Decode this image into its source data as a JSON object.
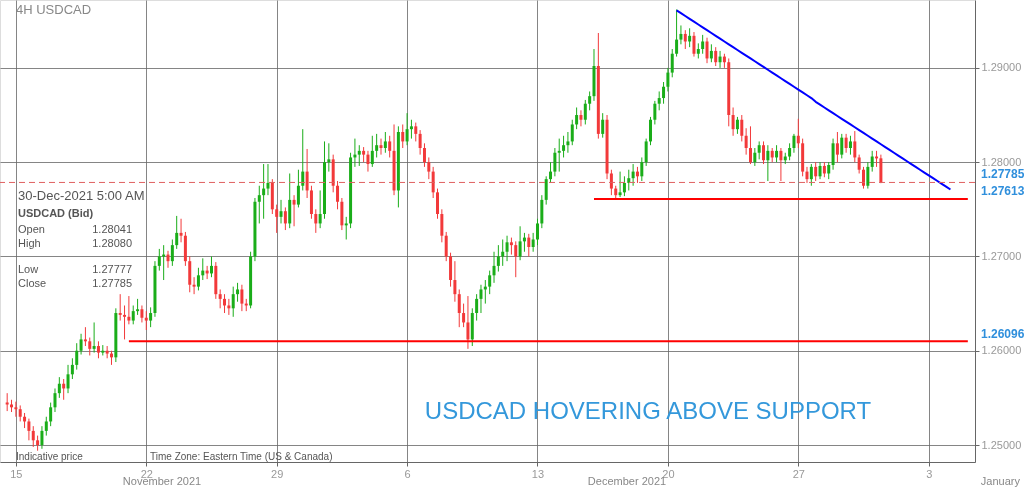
{
  "chart_data": {
    "type": "candlestick",
    "title": "4H  USDCAD",
    "categories": [
      null,
      null,
      "15",
      null,
      null,
      null,
      null,
      null,
      null,
      null,
      null,
      null,
      null,
      null,
      null,
      null,
      null,
      null,
      null,
      null,
      null,
      null,
      null,
      null,
      null,
      null,
      null,
      null,
      null,
      null,
      null,
      null,
      "22",
      null,
      null,
      null,
      null,
      null,
      null,
      null,
      null,
      null,
      null,
      null,
      null,
      null,
      null,
      null,
      null,
      null,
      null,
      null,
      null,
      null,
      null,
      null,
      null,
      null,
      null,
      null,
      null,
      null,
      "29",
      null,
      null,
      null,
      null,
      null,
      null,
      null,
      null,
      null,
      null,
      null,
      null,
      null,
      null,
      null,
      null,
      null,
      null,
      null,
      null,
      null,
      null,
      null,
      null,
      null,
      null,
      null,
      null,
      null,
      "6",
      null,
      null,
      null,
      null,
      null,
      null,
      null,
      null,
      null,
      null,
      null,
      null,
      null,
      null,
      null,
      null,
      null,
      null,
      null,
      null,
      null,
      null,
      null,
      null,
      null,
      null,
      null,
      null,
      null,
      "13",
      null,
      null,
      null,
      null,
      null,
      null,
      null,
      null,
      null,
      null,
      null,
      null,
      null,
      null,
      null,
      null,
      null,
      null,
      null,
      null,
      null,
      null,
      null,
      null,
      null,
      null,
      null,
      null,
      null,
      "20",
      null,
      null,
      null,
      null,
      null,
      null,
      null,
      null,
      null,
      null,
      null,
      null,
      null,
      null,
      null,
      null,
      null,
      null,
      null,
      null,
      null,
      null,
      null,
      null,
      null,
      null,
      null,
      null,
      null,
      "27",
      null,
      null,
      null,
      null,
      null,
      null,
      null,
      null,
      null,
      null,
      null,
      null,
      null,
      null,
      null,
      null,
      null,
      null,
      null,
      null,
      null,
      null,
      null,
      null,
      null,
      null,
      null,
      null,
      null,
      "3",
      null,
      null,
      null,
      null,
      null,
      null,
      null,
      null,
      null
    ],
    "ohlc": [
      [
        1.2545,
        1.2555,
        1.2536,
        1.2543
      ],
      [
        1.2543,
        1.2548,
        1.2535,
        1.254
      ],
      [
        1.254,
        1.2546,
        1.253,
        1.2538
      ],
      [
        1.2538,
        1.2542,
        1.2525,
        1.253
      ],
      [
        1.253,
        1.2534,
        1.2518,
        1.2525
      ],
      [
        1.2525,
        1.2528,
        1.2505,
        1.2515
      ],
      [
        1.2515,
        1.252,
        1.2498,
        1.2505
      ],
      [
        1.2505,
        1.251,
        1.2494,
        1.25
      ],
      [
        1.25,
        1.252,
        1.2496,
        1.2515
      ],
      [
        1.2515,
        1.253,
        1.251,
        1.2525
      ],
      [
        1.2525,
        1.2545,
        1.252,
        1.254
      ],
      [
        1.254,
        1.256,
        1.2535,
        1.2555
      ],
      [
        1.2555,
        1.2572,
        1.255,
        1.2565
      ],
      [
        1.2565,
        1.257,
        1.2548,
        1.256
      ],
      [
        1.256,
        1.2585,
        1.2555,
        1.2575
      ],
      [
        1.2575,
        1.2592,
        1.257,
        1.2585
      ],
      [
        1.2585,
        1.2608,
        1.258,
        1.26
      ],
      [
        1.26,
        1.2618,
        1.2596,
        1.2612
      ],
      [
        1.2612,
        1.2625,
        1.2605,
        1.261
      ],
      [
        1.261,
        1.2614,
        1.2595,
        1.2602
      ],
      [
        1.2602,
        1.263,
        1.2598,
        1.2605
      ],
      [
        1.2605,
        1.261,
        1.2592,
        1.2598
      ],
      [
        1.2598,
        1.2606,
        1.2595,
        1.26
      ],
      [
        1.26,
        1.2605,
        1.2592,
        1.2597
      ],
      [
        1.2597,
        1.26,
        1.2585,
        1.2593
      ],
      [
        1.2593,
        1.2645,
        1.2588,
        1.264
      ],
      [
        1.264,
        1.266,
        1.2632,
        1.2638
      ],
      [
        1.2638,
        1.2648,
        1.2612,
        1.2636
      ],
      [
        1.2636,
        1.2658,
        1.2628,
        1.2632
      ],
      [
        1.2632,
        1.2648,
        1.2628,
        1.2642
      ],
      [
        1.2642,
        1.2655,
        1.2638,
        1.2644
      ],
      [
        1.2644,
        1.2648,
        1.263,
        1.2635
      ],
      [
        1.2635,
        1.2642,
        1.2622,
        1.2632
      ],
      [
        1.2632,
        1.2646,
        1.2625,
        1.264
      ],
      [
        1.264,
        1.2695,
        1.2636,
        1.269
      ],
      [
        1.269,
        1.2708,
        1.2685,
        1.27
      ],
      [
        1.27,
        1.2712,
        1.2675,
        1.2702
      ],
      [
        1.2702,
        1.2706,
        1.2688,
        1.2695
      ],
      [
        1.2695,
        1.2718,
        1.269,
        1.2712
      ],
      [
        1.2712,
        1.2743,
        1.2708,
        1.2725
      ],
      [
        1.2725,
        1.274,
        1.2715,
        1.2722
      ],
      [
        1.2722,
        1.2726,
        1.269,
        1.2695
      ],
      [
        1.2695,
        1.27,
        1.2662,
        1.267
      ],
      [
        1.267,
        1.2678,
        1.266,
        1.2668
      ],
      [
        1.2668,
        1.2688,
        1.2664,
        1.268
      ],
      [
        1.268,
        1.2698,
        1.2675,
        1.2685
      ],
      [
        1.2685,
        1.269,
        1.2676,
        1.2682
      ],
      [
        1.2682,
        1.27,
        1.2678,
        1.269
      ],
      [
        1.269,
        1.2694,
        1.2655,
        1.266
      ],
      [
        1.266,
        1.2665,
        1.2645,
        1.2655
      ],
      [
        1.2655,
        1.266,
        1.264,
        1.2648
      ],
      [
        1.2648,
        1.2655,
        1.2638,
        1.2645
      ],
      [
        1.2645,
        1.2668,
        1.2636,
        1.266
      ],
      [
        1.266,
        1.2672,
        1.2652,
        1.2665
      ],
      [
        1.2665,
        1.267,
        1.2642,
        1.265
      ],
      [
        1.265,
        1.2655,
        1.2642,
        1.2648
      ],
      [
        1.2648,
        1.2705,
        1.2645,
        1.27
      ],
      [
        1.27,
        1.2762,
        1.2695,
        1.2758
      ],
      [
        1.2758,
        1.2775,
        1.2735,
        1.2765
      ],
      [
        1.2765,
        1.2798,
        1.274,
        1.2772
      ],
      [
        1.2772,
        1.2798,
        1.2765,
        1.2778
      ],
      [
        1.2778,
        1.2782,
        1.2745,
        1.275
      ],
      [
        1.275,
        1.2755,
        1.2725,
        1.2742
      ],
      [
        1.2742,
        1.276,
        1.2735,
        1.2748
      ],
      [
        1.2748,
        1.2752,
        1.2728,
        1.2735
      ],
      [
        1.2735,
        1.2788,
        1.273,
        1.276
      ],
      [
        1.276,
        1.2765,
        1.2732,
        1.2755
      ],
      [
        1.2755,
        1.2792,
        1.2752,
        1.2775
      ],
      [
        1.2775,
        1.2835,
        1.277,
        1.279
      ],
      [
        1.279,
        1.2814,
        1.2762,
        1.277
      ],
      [
        1.277,
        1.2775,
        1.274,
        1.2745
      ],
      [
        1.2745,
        1.275,
        1.2725,
        1.2735
      ],
      [
        1.2735,
        1.277,
        1.273,
        1.2745
      ],
      [
        1.2745,
        1.2822,
        1.274,
        1.28
      ],
      [
        1.28,
        1.282,
        1.279,
        1.2803
      ],
      [
        1.2803,
        1.2808,
        1.2768,
        1.2775
      ],
      [
        1.2775,
        1.278,
        1.275,
        1.2758
      ],
      [
        1.2758,
        1.2762,
        1.2728,
        1.2733
      ],
      [
        1.2733,
        1.2742,
        1.2718,
        1.2735
      ],
      [
        1.2735,
        1.281,
        1.273,
        1.2805
      ],
      [
        1.2805,
        1.2825,
        1.2795,
        1.2808
      ],
      [
        1.2808,
        1.2818,
        1.2796,
        1.2812
      ],
      [
        1.2812,
        1.2816,
        1.28,
        1.2808
      ],
      [
        1.2808,
        1.2812,
        1.279,
        1.2798
      ],
      [
        1.2798,
        1.2828,
        1.2795,
        1.2812
      ],
      [
        1.2812,
        1.283,
        1.2805,
        1.2818
      ],
      [
        1.2818,
        1.2825,
        1.2808,
        1.2815
      ],
      [
        1.2815,
        1.2832,
        1.281,
        1.2822
      ],
      [
        1.2822,
        1.2828,
        1.2805,
        1.2812
      ],
      [
        1.2812,
        1.284,
        1.2765,
        1.277
      ],
      [
        1.277,
        1.2838,
        1.2752,
        1.2832
      ],
      [
        1.2832,
        1.284,
        1.2815,
        1.2822
      ],
      [
        1.2822,
        1.2852,
        1.2818,
        1.2835
      ],
      [
        1.2835,
        1.2845,
        1.2825,
        1.2838
      ],
      [
        1.2838,
        1.2842,
        1.2822,
        1.283
      ],
      [
        1.283,
        1.2834,
        1.2808,
        1.2815
      ],
      [
        1.2815,
        1.282,
        1.2795,
        1.28
      ],
      [
        1.28,
        1.2805,
        1.2782,
        1.279
      ],
      [
        1.279,
        1.2795,
        1.2762,
        1.2768
      ],
      [
        1.2768,
        1.2772,
        1.274,
        1.2745
      ],
      [
        1.2745,
        1.275,
        1.2715,
        1.2722
      ],
      [
        1.2722,
        1.2726,
        1.2695,
        1.27
      ],
      [
        1.27,
        1.2704,
        1.2668,
        1.2675
      ],
      [
        1.2675,
        1.2695,
        1.2652,
        1.266
      ],
      [
        1.266,
        1.2665,
        1.2625,
        1.264
      ],
      [
        1.264,
        1.265,
        1.2625,
        1.263
      ],
      [
        1.263,
        1.2658,
        1.2602,
        1.2612
      ],
      [
        1.2612,
        1.2645,
        1.2605,
        1.264
      ],
      [
        1.264,
        1.266,
        1.2632,
        1.2655
      ],
      [
        1.2655,
        1.267,
        1.264,
        1.2665
      ],
      [
        1.2665,
        1.2675,
        1.265,
        1.2668
      ],
      [
        1.2668,
        1.2685,
        1.266,
        1.268
      ],
      [
        1.268,
        1.2705,
        1.2672,
        1.269
      ],
      [
        1.269,
        1.2712,
        1.2684,
        1.27
      ],
      [
        1.27,
        1.2718,
        1.269,
        1.2705
      ],
      [
        1.2705,
        1.2722,
        1.2695,
        1.2715
      ],
      [
        1.2715,
        1.272,
        1.2702,
        1.2712
      ],
      [
        1.2712,
        1.2716,
        1.2678,
        1.27
      ],
      [
        1.27,
        1.2732,
        1.2696,
        1.2716
      ],
      [
        1.2716,
        1.2725,
        1.2705,
        1.272
      ],
      [
        1.272,
        1.2724,
        1.27,
        1.271
      ],
      [
        1.271,
        1.2725,
        1.2705,
        1.2718
      ],
      [
        1.2718,
        1.274,
        1.2712,
        1.2735
      ],
      [
        1.2735,
        1.2765,
        1.273,
        1.276
      ],
      [
        1.276,
        1.2785,
        1.2755,
        1.2782
      ],
      [
        1.2782,
        1.28,
        1.2778,
        1.279
      ],
      [
        1.279,
        1.2815,
        1.2785,
        1.281
      ],
      [
        1.281,
        1.2825,
        1.279,
        1.2812
      ],
      [
        1.2812,
        1.2828,
        1.2805,
        1.2818
      ],
      [
        1.2818,
        1.2832,
        1.281,
        1.2822
      ],
      [
        1.2822,
        1.2845,
        1.2818,
        1.284
      ],
      [
        1.284,
        1.2858,
        1.2835,
        1.285
      ],
      [
        1.285,
        1.2855,
        1.2838,
        1.2845
      ],
      [
        1.2845,
        1.2866,
        1.284,
        1.2862
      ],
      [
        1.2862,
        1.2875,
        1.2855,
        1.287
      ],
      [
        1.287,
        1.292,
        1.2865,
        1.2902
      ],
      [
        1.2902,
        1.2937,
        1.2825,
        1.283
      ],
      [
        1.283,
        1.2852,
        1.2826,
        1.2845
      ],
      [
        1.2845,
        1.285,
        1.2782,
        1.2788
      ],
      [
        1.2788,
        1.2792,
        1.2765,
        1.2772
      ],
      [
        1.2772,
        1.2775,
        1.2762,
        1.2765
      ],
      [
        1.2765,
        1.279,
        1.2763,
        1.2768
      ],
      [
        1.2768,
        1.2785,
        1.2764,
        1.2778
      ],
      [
        1.2778,
        1.2792,
        1.277,
        1.2783
      ],
      [
        1.2783,
        1.2798,
        1.2775,
        1.279
      ],
      [
        1.279,
        1.2795,
        1.2778,
        1.2785
      ],
      [
        1.2785,
        1.2805,
        1.278,
        1.28
      ],
      [
        1.28,
        1.2825,
        1.2796,
        1.2822
      ],
      [
        1.2822,
        1.2848,
        1.2818,
        1.2845
      ],
      [
        1.2845,
        1.2865,
        1.284,
        1.2862
      ],
      [
        1.2862,
        1.2875,
        1.2855,
        1.2868
      ],
      [
        1.2868,
        1.2885,
        1.2862,
        1.288
      ],
      [
        1.288,
        1.29,
        1.2875,
        1.2895
      ],
      [
        1.2895,
        1.292,
        1.289,
        1.2915
      ],
      [
        1.2915,
        1.2962,
        1.2912,
        1.293
      ],
      [
        1.293,
        1.2945,
        1.2925,
        1.2936
      ],
      [
        1.2936,
        1.294,
        1.292,
        1.2928
      ],
      [
        1.2928,
        1.2942,
        1.2922,
        1.2934
      ],
      [
        1.2934,
        1.2938,
        1.2912,
        1.2915
      ],
      [
        1.2915,
        1.2926,
        1.291,
        1.292
      ],
      [
        1.292,
        1.2935,
        1.2915,
        1.2928
      ],
      [
        1.2928,
        1.2932,
        1.2905,
        1.291
      ],
      [
        1.291,
        1.2925,
        1.2906,
        1.2918
      ],
      [
        1.2918,
        1.2922,
        1.2902,
        1.2906
      ],
      [
        1.2906,
        1.2918,
        1.29,
        1.2912
      ],
      [
        1.2912,
        1.2915,
        1.29,
        1.2906
      ],
      [
        1.2906,
        1.291,
        1.2838,
        1.285
      ],
      [
        1.285,
        1.2858,
        1.2828,
        1.2835
      ],
      [
        1.2835,
        1.2848,
        1.283,
        1.2845
      ],
      [
        1.2845,
        1.285,
        1.2822,
        1.2828
      ],
      [
        1.2828,
        1.2836,
        1.2808,
        1.2815
      ],
      [
        1.2815,
        1.2838,
        1.2798,
        1.28
      ],
      [
        1.28,
        1.2815,
        1.2796,
        1.281
      ],
      [
        1.281,
        1.2822,
        1.2803,
        1.2818
      ],
      [
        1.2818,
        1.2822,
        1.2798,
        1.2802
      ],
      [
        1.2802,
        1.2818,
        1.278,
        1.2812
      ],
      [
        1.2812,
        1.2815,
        1.28,
        1.2805
      ],
      [
        1.2805,
        1.2818,
        1.28,
        1.2812
      ],
      [
        1.2812,
        1.2815,
        1.278,
        1.2802
      ],
      [
        1.2802,
        1.281,
        1.2798,
        1.2806
      ],
      [
        1.2806,
        1.282,
        1.2802,
        1.2815
      ],
      [
        1.2815,
        1.283,
        1.281,
        1.2828
      ],
      [
        1.2828,
        1.2846,
        1.2815,
        1.282
      ],
      [
        1.282,
        1.2825,
        1.2785,
        1.279
      ],
      [
        1.279,
        1.2795,
        1.2778,
        1.2782
      ],
      [
        1.2782,
        1.2798,
        1.2775,
        1.2795
      ],
      [
        1.2795,
        1.28,
        1.278,
        1.2785
      ],
      [
        1.2785,
        1.28,
        1.2782,
        1.2796
      ],
      [
        1.2796,
        1.28,
        1.2784,
        1.2788
      ],
      [
        1.2788,
        1.28,
        1.2782,
        1.2797
      ],
      [
        1.2797,
        1.2825,
        1.2792,
        1.282
      ],
      [
        1.282,
        1.2832,
        1.28,
        1.2808
      ],
      [
        1.2808,
        1.283,
        1.2804,
        1.2826
      ],
      [
        1.2826,
        1.283,
        1.281,
        1.2815
      ],
      [
        1.2815,
        1.2828,
        1.2808,
        1.2822
      ],
      [
        1.2822,
        1.2833,
        1.28,
        1.2805
      ],
      [
        1.2805,
        1.2808,
        1.2788,
        1.2792
      ],
      [
        1.2792,
        1.2795,
        1.2772,
        1.2775
      ],
      [
        1.2775,
        1.28,
        1.2772,
        1.2795
      ],
      [
        1.2795,
        1.2812,
        1.279,
        1.2806
      ],
      [
        1.2806,
        1.2812,
        1.2795,
        1.2804
      ],
      [
        1.28041,
        1.2808,
        1.27777,
        1.27785
      ],
      null,
      null,
      null,
      null,
      null,
      null,
      null,
      null,
      null,
      null,
      null,
      null,
      null,
      null,
      null,
      null,
      null,
      null,
      null,
      null
    ],
    "series": [
      {
        "type": "line",
        "color": "#ff0000",
        "values": [
          null,
          null,
          null,
          null,
          null,
          null,
          null,
          null,
          null,
          null,
          null,
          null,
          null,
          null,
          null,
          null,
          null,
          null,
          null,
          null,
          null,
          null,
          null,
          null,
          null,
          null,
          null,
          null,
          1.261,
          1.261,
          1.261,
          1.261,
          1.261,
          1.261,
          1.261,
          1.261,
          1.261,
          1.261,
          1.261,
          1.261,
          1.261,
          1.261,
          1.261,
          1.261,
          1.261,
          1.261,
          1.261,
          1.261,
          1.261,
          1.261,
          1.261,
          1.261,
          1.261,
          1.261,
          1.261,
          1.261,
          1.261,
          1.261,
          1.261,
          1.261,
          1.261,
          1.261,
          1.261,
          1.261,
          1.261,
          1.261,
          1.261,
          1.261,
          1.261,
          1.261,
          1.261,
          1.261,
          1.261,
          1.261,
          1.261,
          1.261,
          1.261,
          1.261,
          1.261,
          1.261,
          1.261,
          1.261,
          1.261,
          1.261,
          1.261,
          1.261,
          1.261,
          1.261,
          1.261,
          1.261,
          1.261,
          1.261,
          1.261,
          1.261,
          1.261,
          1.261,
          1.261,
          1.261,
          1.261,
          1.261,
          1.261,
          1.261,
          1.261,
          1.261,
          1.261,
          1.261,
          1.261,
          1.261,
          1.261,
          1.261,
          1.261,
          1.261,
          1.261,
          1.261,
          1.261,
          1.261,
          1.261,
          1.261,
          1.261,
          1.261,
          1.261,
          1.261,
          1.261,
          1.261,
          1.261,
          1.261,
          1.261,
          1.261,
          1.261,
          1.261,
          1.261,
          1.261,
          1.261,
          1.261,
          1.261,
          1.261,
          1.261,
          1.261,
          1.261,
          1.261,
          1.261,
          1.261,
          1.261,
          1.261,
          1.261,
          1.261,
          1.261,
          1.261,
          1.261,
          1.261,
          1.261,
          1.261,
          1.261,
          1.261,
          1.261,
          1.261,
          1.261,
          1.261,
          1.261,
          1.261,
          1.261,
          1.261,
          1.261,
          1.261,
          1.261,
          1.261,
          1.261,
          1.261,
          1.261,
          1.261,
          1.261,
          1.261,
          1.261,
          1.261,
          1.261,
          1.261,
          1.261,
          1.261,
          1.261,
          1.261,
          1.261,
          1.261,
          1.261,
          1.261,
          1.261,
          1.261,
          1.261,
          1.261,
          1.261,
          1.261,
          1.261,
          1.261,
          1.261,
          1.261,
          1.261,
          1.261,
          1.261,
          1.261,
          1.261,
          1.261,
          1.261,
          1.261,
          1.261,
          1.261,
          1.261,
          1.261,
          1.261,
          1.261,
          1.261,
          1.261,
          1.261,
          1.261,
          1.261,
          1.261,
          1.261,
          1.261,
          1.261,
          1.261,
          1.261,
          1.261,
          1.261,
          1.261
        ]
      },
      {
        "type": "line",
        "color": "#ff0000",
        "values": [
          null,
          null,
          null,
          null,
          null,
          null,
          null,
          null,
          null,
          null,
          null,
          null,
          null,
          null,
          null,
          null,
          null,
          null,
          null,
          null,
          null,
          null,
          null,
          null,
          null,
          null,
          null,
          null,
          null,
          null,
          null,
          null,
          null,
          null,
          null,
          null,
          null,
          null,
          null,
          null,
          null,
          null,
          null,
          null,
          null,
          null,
          null,
          null,
          null,
          null,
          null,
          null,
          null,
          null,
          null,
          null,
          null,
          null,
          null,
          null,
          null,
          null,
          null,
          null,
          null,
          null,
          null,
          null,
          null,
          null,
          null,
          null,
          null,
          null,
          null,
          null,
          null,
          null,
          null,
          null,
          null,
          null,
          null,
          null,
          null,
          null,
          null,
          null,
          null,
          null,
          null,
          null,
          null,
          null,
          null,
          null,
          null,
          null,
          null,
          null,
          null,
          null,
          null,
          null,
          null,
          null,
          null,
          null,
          null,
          null,
          null,
          null,
          null,
          null,
          null,
          null,
          null,
          null,
          null,
          null,
          null,
          null,
          null,
          null,
          null,
          null,
          null,
          null,
          null,
          null,
          null,
          null,
          null,
          null,
          null,
          1.2761,
          1.2761,
          1.2761,
          1.2761,
          1.2761,
          1.2761,
          1.2761,
          1.2761,
          1.2761,
          1.2761,
          1.2761,
          1.2761,
          1.2761,
          1.2761,
          1.2761,
          1.2761,
          1.2761,
          1.2761,
          1.2761,
          1.2761,
          1.2761,
          1.2761,
          1.2761,
          1.2761,
          1.2761,
          1.2761,
          1.2761,
          1.2761,
          1.2761,
          1.2761,
          1.2761,
          1.2761,
          1.2761,
          1.2761,
          1.2761,
          1.2761,
          1.2761,
          1.2761,
          1.2761,
          1.2761,
          1.2761,
          1.2761,
          1.2761,
          1.2761,
          1.2761,
          1.2761,
          1.2761,
          1.2761,
          1.2761,
          1.2761,
          1.2761,
          1.2761,
          1.2761,
          1.2761,
          1.2761,
          1.2761,
          1.2761,
          1.2761,
          1.2761,
          1.2761,
          1.2761,
          1.2761,
          1.2761,
          1.2761,
          1.2761,
          1.2761,
          1.2761,
          1.2761,
          1.2761,
          1.2761,
          1.2761,
          1.2761,
          1.2761,
          1.2761,
          1.2761,
          1.2761,
          1.2761,
          1.2761,
          1.2761,
          1.2761,
          1.2761,
          1.2761,
          1.2761,
          1.2761,
          1.2761,
          1.2761,
          1.2761
        ]
      },
      {
        "type": "line",
        "color": "#0000ff",
        "values": [
          null,
          null,
          null,
          null,
          null,
          null,
          null,
          null,
          null,
          null,
          null,
          null,
          null,
          null,
          null,
          null,
          null,
          null,
          null,
          null,
          null,
          null,
          null,
          null,
          null,
          null,
          null,
          null,
          null,
          null,
          null,
          null,
          null,
          null,
          null,
          null,
          null,
          null,
          null,
          null,
          null,
          null,
          null,
          null,
          null,
          null,
          null,
          null,
          null,
          null,
          null,
          null,
          null,
          null,
          null,
          null,
          null,
          null,
          null,
          null,
          null,
          null,
          null,
          null,
          null,
          null,
          null,
          null,
          null,
          null,
          null,
          null,
          null,
          null,
          null,
          null,
          null,
          null,
          null,
          null,
          null,
          null,
          null,
          null,
          null,
          null,
          null,
          null,
          null,
          null,
          null,
          null,
          null,
          null,
          null,
          null,
          null,
          null,
          null,
          null,
          null,
          null,
          null,
          null,
          null,
          null,
          null,
          null,
          null,
          null,
          null,
          null,
          null,
          null,
          null,
          null,
          null,
          null,
          null,
          null,
          null,
          null,
          null,
          null,
          null,
          null,
          null,
          null,
          null,
          null,
          null,
          null,
          null,
          null,
          null,
          null,
          null,
          null,
          null,
          null,
          null,
          null,
          null,
          null,
          null,
          null,
          null,
          null,
          null,
          null,
          null,
          null,
          null,
          null,
          1.2961,
          1.2958,
          1.2955,
          1.2952,
          1.2949,
          1.2946,
          1.2943,
          1.294,
          1.2937,
          1.2934,
          1.2931,
          1.2928,
          1.2925,
          1.2922,
          1.2919,
          1.2916,
          1.2913,
          1.291,
          1.2907,
          1.2904,
          1.2901,
          1.2898,
          1.2895,
          1.2892,
          1.2889,
          1.2886,
          1.2883,
          1.288,
          1.2877,
          1.2874,
          1.2871,
          1.2868,
          1.2864,
          1.2861,
          1.2858,
          1.2855,
          1.2852,
          1.2849,
          1.2846,
          1.2843,
          1.284,
          1.2837,
          1.2834,
          1.2831,
          1.2828,
          1.2825,
          1.2822,
          1.2819,
          1.2816,
          1.2813,
          1.281,
          1.2807,
          1.2804,
          1.2801,
          1.2798,
          1.2795,
          1.2792,
          1.2789,
          1.2786,
          1.2783,
          1.278,
          1.2777,
          1.2774,
          1.2771,
          null,
          null,
          null,
          null
        ]
      }
    ],
    "ylim": [
      1.2482,
      1.2972
    ],
    "yticks": [
      {
        "value": 1.25,
        "label": "1.25000"
      },
      {
        "value": 1.26,
        "label": "1.26000"
      },
      {
        "value": 1.27,
        "label": "1.27000"
      },
      {
        "value": 1.28,
        "label": "1.28000"
      },
      {
        "value": 1.29,
        "label": "1.29000"
      }
    ],
    "grid": true,
    "ref_lines": [
      {
        "axis": "y",
        "value": 1.27785,
        "label": "1.27785",
        "color": "#e06060",
        "line_style": "dashed"
      }
    ],
    "annotations": [
      "30-Dec-2021 5:00 AM",
      "USDCAD (Bid)",
      "Open",
      "1.28041",
      "High",
      "1.28080",
      "Low",
      "1.27777",
      "Close",
      "1.27785",
      "USDCAD HOVERING ABOVE SUPPORT",
      "Indicative price",
      "Time Zone: Eastern Time (US & Canada)",
      "November 2021",
      "December 2021",
      "January",
      "1.27613",
      "1.26096"
    ]
  }
}
